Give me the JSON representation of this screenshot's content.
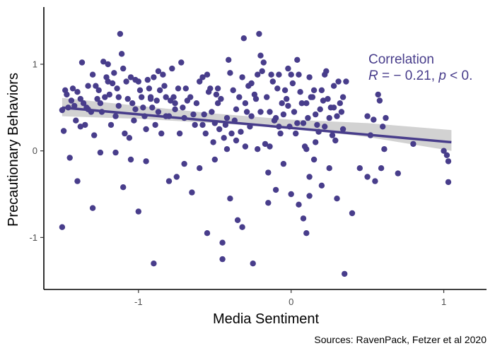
{
  "chart_data": {
    "type": "scatter",
    "xlabel": "Media Sentiment",
    "ylabel": "Precautionary Behaviors",
    "xlim": [
      -1.62,
      1.28
    ],
    "ylim": [
      -1.6,
      1.66
    ],
    "xticks": [
      -1,
      0,
      1
    ],
    "xtick_labels": [
      "-1",
      "0",
      "1"
    ],
    "yticks": [
      -1,
      0,
      1
    ],
    "ytick_labels": [
      "-1",
      "0",
      "1"
    ],
    "grid": false,
    "colors": {
      "points": "#483d8b",
      "line": "#483d8b",
      "band": "#bfbfbf"
    },
    "annotation": {
      "line1": "Correlation",
      "line2_R": "R",
      "line2_eq": " = − 0.21, ",
      "line2_p": "p",
      "line2_rest": " < 0."
    },
    "caption": "Sources: RavenPack, Fetzer et al 2020",
    "fit": {
      "x_start": -1.5,
      "y_start": 0.5,
      "x_end": 1.05,
      "y_end": 0.1,
      "band": [
        [
          -1.5,
          0.4,
          0.61
        ],
        [
          -1.0,
          0.37,
          0.52
        ],
        [
          -0.5,
          0.32,
          0.43
        ],
        [
          0.0,
          0.26,
          0.36
        ],
        [
          0.5,
          0.16,
          0.32
        ],
        [
          1.05,
          0.0,
          0.24
        ]
      ]
    },
    "points": [
      [
        -1.5,
        -0.88
      ],
      [
        -1.5,
        0.47
      ],
      [
        -1.47,
        0.65
      ],
      [
        -1.44,
        0.58
      ],
      [
        -1.42,
        0.52
      ],
      [
        -1.4,
        0.68
      ],
      [
        -1.38,
        0.6
      ],
      [
        -1.36,
        0.55
      ],
      [
        -1.35,
        0.3
      ],
      [
        -1.33,
        0.48
      ],
      [
        -1.3,
        0.88
      ],
      [
        -1.28,
        0.75
      ],
      [
        -1.26,
        0.7
      ],
      [
        -1.25,
        0.55
      ],
      [
        -1.24,
        0.45
      ],
      [
        -1.22,
        0.62
      ],
      [
        -1.21,
        0.85
      ],
      [
        -1.2,
        1.0
      ],
      [
        -1.19,
        0.65
      ],
      [
        -1.17,
        0.78
      ],
      [
        -1.16,
        0.9
      ],
      [
        -1.15,
        0.4
      ],
      [
        -1.13,
        0.62
      ],
      [
        -1.12,
        1.35
      ],
      [
        -1.11,
        1.12
      ],
      [
        -1.1,
        0.95
      ],
      [
        -1.08,
        0.8
      ],
      [
        -1.07,
        0.6
      ],
      [
        -1.05,
        0.85
      ],
      [
        -1.04,
        0.55
      ],
      [
        -1.03,
        0.35
      ],
      [
        -1.02,
        0.48
      ],
      [
        -1.0,
        0.8
      ],
      [
        -0.98,
        0.62
      ],
      [
        -0.96,
        0.4
      ],
      [
        -0.95,
        0.25
      ],
      [
        -0.93,
        0.72
      ],
      [
        -0.92,
        0.6
      ],
      [
        -0.9,
        0.85
      ],
      [
        -0.88,
        0.58
      ],
      [
        -0.87,
        0.45
      ],
      [
        -0.86,
        0.7
      ],
      [
        -0.84,
        0.88
      ],
      [
        -0.82,
        0.62
      ],
      [
        -0.8,
        0.4
      ],
      [
        -0.78,
        0.95
      ],
      [
        -0.76,
        0.55
      ],
      [
        -0.74,
        0.72
      ],
      [
        -0.72,
        1.02
      ],
      [
        -0.7,
        0.38
      ],
      [
        -0.68,
        0.58
      ],
      [
        -0.64,
        0.42
      ],
      [
        -0.6,
        0.8
      ],
      [
        -0.58,
        0.3
      ],
      [
        -0.56,
        0.2
      ],
      [
        -0.55,
        0.88
      ],
      [
        -0.54,
        0.68
      ],
      [
        -0.52,
        0.45
      ],
      [
        -0.5,
        0.32
      ],
      [
        -0.48,
        0.72
      ],
      [
        -0.46,
        0.6
      ],
      [
        -0.44,
        0.15
      ],
      [
        -0.42,
        0.38
      ],
      [
        -0.4,
        0.9
      ],
      [
        -0.38,
        0.7
      ],
      [
        -0.36,
        0.48
      ],
      [
        -0.34,
        0.62
      ],
      [
        -0.32,
        0.85
      ],
      [
        -0.3,
        0.55
      ],
      [
        -0.28,
        0.75
      ],
      [
        -0.26,
        0.4
      ],
      [
        -0.24,
        0.65
      ],
      [
        -0.22,
        0.88
      ],
      [
        -0.2,
        1.1
      ],
      [
        -0.18,
        1.02
      ],
      [
        -0.16,
        0.62
      ],
      [
        -0.14,
        0.45
      ],
      [
        -0.12,
        0.8
      ],
      [
        -0.1,
        0.38
      ],
      [
        -0.08,
        0.88
      ],
      [
        -0.06,
        0.55
      ],
      [
        -0.04,
        0.7
      ],
      [
        -0.02,
        0.95
      ],
      [
        0.0,
        0.88
      ],
      [
        0.02,
        0.45
      ],
      [
        0.04,
        1.05
      ],
      [
        0.06,
        0.68
      ],
      [
        0.08,
        0.32
      ],
      [
        0.1,
        0.55
      ],
      [
        0.12,
        0.85
      ],
      [
        0.14,
        0.62
      ],
      [
        0.16,
        0.42
      ],
      [
        0.18,
        0.22
      ],
      [
        0.2,
        0.7
      ],
      [
        0.22,
        0.88
      ],
      [
        0.24,
        0.6
      ],
      [
        0.26,
        0.5
      ],
      [
        0.28,
        0.75
      ],
      [
        0.3,
        0.4
      ],
      [
        0.32,
        0.55
      ],
      [
        0.34,
        0.62
      ],
      [
        0.36,
        0.8
      ],
      [
        0.5,
        0.4
      ],
      [
        0.54,
        0.36
      ],
      [
        0.58,
        0.58
      ],
      [
        0.6,
        0.28
      ],
      [
        0.62,
        0.38
      ],
      [
        0.8,
        0.08
      ],
      [
        1.0,
        0.0
      ],
      [
        1.02,
        -0.05
      ],
      [
        1.03,
        -0.12
      ],
      [
        1.03,
        -0.36
      ],
      [
        -1.45,
        -0.08
      ],
      [
        -1.4,
        -0.35
      ],
      [
        -1.3,
        -0.66
      ],
      [
        -1.15,
        -0.02
      ],
      [
        -1.1,
        -0.42
      ],
      [
        -1.05,
        -0.1
      ],
      [
        -1.0,
        -0.7
      ],
      [
        -0.95,
        -0.12
      ],
      [
        -0.9,
        -1.3
      ],
      [
        -0.8,
        -0.35
      ],
      [
        -0.75,
        -0.3
      ],
      [
        -0.7,
        -0.15
      ],
      [
        -0.6,
        -0.2
      ],
      [
        -0.55,
        -0.95
      ],
      [
        -0.5,
        -0.1
      ],
      [
        -0.45,
        -1.06
      ],
      [
        -0.45,
        -1.25
      ],
      [
        -0.4,
        -0.55
      ],
      [
        -0.35,
        -0.8
      ],
      [
        -0.32,
        -0.88
      ],
      [
        -0.25,
        -1.3
      ],
      [
        -0.22,
        0.02
      ],
      [
        -0.15,
        -0.25
      ],
      [
        -0.1,
        -0.45
      ],
      [
        -0.05,
        -0.15
      ],
      [
        0.0,
        -0.5
      ],
      [
        0.05,
        -0.62
      ],
      [
        0.08,
        -0.78
      ],
      [
        0.1,
        -0.95
      ],
      [
        0.12,
        -0.3
      ],
      [
        0.15,
        -0.1
      ],
      [
        0.2,
        -0.4
      ],
      [
        0.25,
        -0.2
      ],
      [
        0.3,
        -0.55
      ],
      [
        0.35,
        -1.42
      ],
      [
        0.4,
        -0.72
      ],
      [
        0.45,
        -0.2
      ],
      [
        0.5,
        -0.3
      ],
      [
        0.55,
        -0.35
      ],
      [
        0.7,
        -0.26
      ],
      [
        -1.49,
        0.23
      ],
      [
        -1.48,
        0.7
      ],
      [
        -1.46,
        0.5
      ],
      [
        -1.43,
        0.72
      ],
      [
        -1.41,
        0.35
      ],
      [
        -1.37,
        1.02
      ],
      [
        -1.34,
        0.5
      ],
      [
        -1.31,
        0.45
      ],
      [
        -1.29,
        0.18
      ],
      [
        -1.27,
        0.6
      ],
      [
        -1.18,
        0.3
      ],
      [
        -1.14,
        0.72
      ],
      [
        -1.09,
        0.2
      ],
      [
        -1.06,
        0.15
      ],
      [
        -0.99,
        0.7
      ],
      [
        -0.97,
        0.5
      ],
      [
        -0.94,
        0.82
      ],
      [
        -0.91,
        0.5
      ],
      [
        -0.89,
        0.3
      ],
      [
        -0.85,
        0.2
      ],
      [
        -0.83,
        0.75
      ],
      [
        -0.79,
        0.58
      ],
      [
        -0.77,
        0.62
      ],
      [
        -0.73,
        0.2
      ],
      [
        -0.71,
        0.5
      ],
      [
        -0.66,
        0.62
      ],
      [
        -0.62,
        0.55
      ],
      [
        -0.57,
        0.42
      ],
      [
        -0.53,
        0.72
      ],
      [
        -0.51,
        0.1
      ],
      [
        -0.49,
        0.65
      ],
      [
        -0.47,
        0.25
      ],
      [
        -0.43,
        0.3
      ],
      [
        -0.41,
        1.05
      ],
      [
        -0.39,
        0.2
      ],
      [
        -0.37,
        0.35
      ],
      [
        -0.33,
        0.22
      ],
      [
        -0.31,
        1.3
      ],
      [
        -0.29,
        0.45
      ],
      [
        -0.27,
        0.28
      ],
      [
        -0.23,
        0.6
      ],
      [
        -0.21,
        1.35
      ],
      [
        -0.19,
        0.92
      ],
      [
        -0.17,
        0.08
      ],
      [
        -0.13,
        0.88
      ],
      [
        -0.11,
        0.35
      ],
      [
        -0.09,
        0.72
      ],
      [
        -0.07,
        0.2
      ],
      [
        -0.05,
        0.42
      ],
      [
        -0.03,
        0.6
      ],
      [
        -0.01,
        0.28
      ],
      [
        0.01,
        0.78
      ],
      [
        0.03,
        0.2
      ],
      [
        0.05,
        0.88
      ],
      [
        0.07,
        0.55
      ],
      [
        0.09,
        0.05
      ],
      [
        0.11,
        0.38
      ],
      [
        0.13,
        0.62
      ],
      [
        0.15,
        0.7
      ],
      [
        0.17,
        0.3
      ],
      [
        0.19,
        0.48
      ],
      [
        0.21,
        0.58
      ],
      [
        0.23,
        0.92
      ],
      [
        0.25,
        0.38
      ],
      [
        0.27,
        0.18
      ],
      [
        0.29,
        0.12
      ],
      [
        0.31,
        0.8
      ],
      [
        0.33,
        0.45
      ],
      [
        0.52,
        0.18
      ],
      [
        0.57,
        0.65
      ],
      [
        0.59,
        -0.2
      ],
      [
        0.61,
        0.02
      ],
      [
        -1.38,
        0.28
      ],
      [
        -1.33,
        0.75
      ],
      [
        -1.23,
        1.03
      ],
      [
        -1.2,
        0.8
      ],
      [
        -1.13,
        0.52
      ],
      [
        -1.02,
        0.82
      ],
      [
        -0.92,
        0.62
      ],
      [
        -0.87,
        0.92
      ],
      [
        -0.82,
        0.4
      ],
      [
        -0.76,
        0.48
      ],
      [
        -0.69,
        0.72
      ],
      [
        -0.63,
        0.3
      ],
      [
        -0.58,
        0.85
      ],
      [
        -0.48,
        0.55
      ],
      [
        -0.42,
        0.02
      ],
      [
        -0.36,
        0.12
      ],
      [
        -0.3,
        0.05
      ],
      [
        -0.26,
        0.78
      ],
      [
        -0.2,
        0.45
      ],
      [
        -0.14,
        0.05
      ],
      [
        -0.08,
        0.28
      ],
      [
        -0.02,
        0.52
      ],
      [
        0.04,
        0.32
      ],
      [
        0.1,
        0.02
      ],
      [
        0.16,
        0.1
      ],
      [
        0.22,
        0.28
      ],
      [
        0.28,
        0.5
      ],
      [
        0.34,
        0.25
      ],
      [
        -1.25,
        -0.02
      ],
      [
        -0.65,
        -0.48
      ],
      [
        -0.15,
        -0.6
      ],
      [
        0.12,
        -0.52
      ]
    ]
  }
}
